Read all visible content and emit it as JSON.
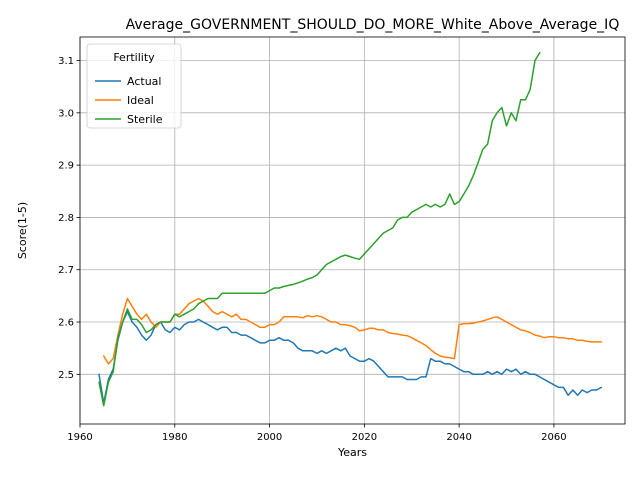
{
  "chart_data": {
    "type": "line",
    "title": "Average_GOVERNMENT_SHOULD_DO_MORE_White_Above_Average_IQ",
    "xlabel": "Years",
    "ylabel": "Score(1-5)",
    "xlim": [
      1960,
      2075
    ],
    "ylim": [
      2.405,
      3.145
    ],
    "xticks": [
      1960,
      1980,
      2000,
      2020,
      2040,
      2060
    ],
    "yticks": [
      2.5,
      2.6,
      2.7,
      2.8,
      2.9,
      3.0,
      3.1
    ],
    "grid": true,
    "legend": {
      "title": "Fertility",
      "placement": "top-left"
    },
    "series": [
      {
        "name": "Actual",
        "color": "#1f77b4",
        "x": [
          1964,
          1965,
          1966,
          1967,
          1968,
          1969,
          1970,
          1971,
          1972,
          1973,
          1974,
          1975,
          1976,
          1977,
          1978,
          1979,
          1980,
          1981,
          1982,
          1983,
          1984,
          1985,
          1986,
          1987,
          1988,
          1989,
          1990,
          1991,
          1992,
          1993,
          1994,
          1995,
          1996,
          1997,
          1998,
          1999,
          2000,
          2001,
          2002,
          2003,
          2004,
          2005,
          2006,
          2007,
          2008,
          2009,
          2010,
          2011,
          2012,
          2013,
          2014,
          2015,
          2016,
          2017,
          2018,
          2019,
          2020,
          2021,
          2022,
          2023,
          2024,
          2025,
          2026,
          2027,
          2028,
          2029,
          2030,
          2031,
          2032,
          2033,
          2034,
          2035,
          2036,
          2037,
          2038,
          2039,
          2040,
          2041,
          2042,
          2043,
          2044,
          2045,
          2046,
          2047,
          2048,
          2049,
          2050,
          2051,
          2052,
          2053,
          2054,
          2055,
          2056,
          2057,
          2058,
          2059,
          2060,
          2061,
          2062,
          2063,
          2064,
          2065,
          2066,
          2067,
          2068,
          2069,
          2070
        ],
        "values": [
          2.5,
          2.445,
          2.49,
          2.51,
          2.565,
          2.6,
          2.62,
          2.6,
          2.59,
          2.575,
          2.565,
          2.575,
          2.595,
          2.6,
          2.585,
          2.58,
          2.59,
          2.585,
          2.595,
          2.6,
          2.6,
          2.605,
          2.6,
          2.595,
          2.59,
          2.585,
          2.59,
          2.59,
          2.58,
          2.58,
          2.575,
          2.575,
          2.57,
          2.565,
          2.56,
          2.56,
          2.565,
          2.565,
          2.57,
          2.565,
          2.565,
          2.56,
          2.55,
          2.545,
          2.545,
          2.545,
          2.54,
          2.545,
          2.54,
          2.545,
          2.55,
          2.545,
          2.55,
          2.535,
          2.53,
          2.525,
          2.525,
          2.53,
          2.525,
          2.515,
          2.505,
          2.495,
          2.495,
          2.495,
          2.495,
          2.49,
          2.49,
          2.49,
          2.495,
          2.495,
          2.53,
          2.525,
          2.525,
          2.52,
          2.52,
          2.515,
          2.51,
          2.505,
          2.505,
          2.5,
          2.5,
          2.5,
          2.505,
          2.5,
          2.505,
          2.5,
          2.51,
          2.505,
          2.51,
          2.5,
          2.505,
          2.5,
          2.5,
          2.495,
          2.49,
          2.485,
          2.48,
          2.475,
          2.475,
          2.46,
          2.47,
          2.46,
          2.47,
          2.465,
          2.47,
          2.47,
          2.475
        ]
      },
      {
        "name": "Ideal",
        "color": "#ff7f0e",
        "x": [
          1965,
          1966,
          1967,
          1968,
          1969,
          1970,
          1971,
          1972,
          1973,
          1974,
          1975,
          1976,
          1977,
          1978,
          1979,
          1980,
          1981,
          1982,
          1983,
          1984,
          1985,
          1986,
          1987,
          1988,
          1989,
          1990,
          1991,
          1992,
          1993,
          1994,
          1995,
          1996,
          1997,
          1998,
          1999,
          2000,
          2001,
          2002,
          2003,
          2004,
          2005,
          2006,
          2007,
          2008,
          2009,
          2010,
          2011,
          2012,
          2013,
          2014,
          2015,
          2016,
          2017,
          2018,
          2019,
          2020,
          2021,
          2022,
          2023,
          2024,
          2025,
          2026,
          2027,
          2028,
          2029,
          2030,
          2031,
          2032,
          2033,
          2034,
          2035,
          2036,
          2037,
          2038,
          2039,
          2040,
          2041,
          2042,
          2043,
          2044,
          2045,
          2046,
          2047,
          2048,
          2049,
          2050,
          2051,
          2052,
          2053,
          2054,
          2055,
          2056,
          2057,
          2058,
          2059,
          2060,
          2061,
          2062,
          2063,
          2064,
          2065,
          2066,
          2067,
          2068,
          2069,
          2070
        ],
        "values": [
          2.535,
          2.52,
          2.53,
          2.575,
          2.615,
          2.645,
          2.63,
          2.615,
          2.605,
          2.615,
          2.6,
          2.59,
          2.6,
          2.6,
          2.6,
          2.615,
          2.615,
          2.625,
          2.635,
          2.64,
          2.645,
          2.64,
          2.63,
          2.62,
          2.615,
          2.62,
          2.615,
          2.61,
          2.615,
          2.605,
          2.605,
          2.6,
          2.595,
          2.59,
          2.59,
          2.595,
          2.595,
          2.6,
          2.61,
          2.61,
          2.61,
          2.61,
          2.608,
          2.612,
          2.61,
          2.612,
          2.61,
          2.605,
          2.6,
          2.6,
          2.595,
          2.595,
          2.593,
          2.59,
          2.583,
          2.585,
          2.588,
          2.588,
          2.585,
          2.585,
          2.58,
          2.578,
          2.577,
          2.575,
          2.574,
          2.57,
          2.565,
          2.56,
          2.555,
          2.547,
          2.54,
          2.535,
          2.533,
          2.532,
          2.53,
          2.595,
          2.597,
          2.597,
          2.598,
          2.6,
          2.602,
          2.605,
          2.608,
          2.61,
          2.605,
          2.6,
          2.595,
          2.59,
          2.585,
          2.583,
          2.58,
          2.575,
          2.573,
          2.57,
          2.572,
          2.572,
          2.57,
          2.57,
          2.568,
          2.568,
          2.565,
          2.565,
          2.563,
          2.562,
          2.562,
          2.562
        ]
      },
      {
        "name": "Sterile",
        "color": "#2ca02c",
        "x": [
          1964,
          1965,
          1966,
          1967,
          1968,
          1969,
          1970,
          1971,
          1972,
          1973,
          1974,
          1975,
          1976,
          1977,
          1978,
          1979,
          1980,
          1981,
          1982,
          1983,
          1984,
          1985,
          1986,
          1987,
          1988,
          1989,
          1990,
          1991,
          1992,
          1993,
          1994,
          1995,
          1996,
          1997,
          1998,
          1999,
          2000,
          2001,
          2002,
          2003,
          2004,
          2005,
          2006,
          2007,
          2008,
          2009,
          2010,
          2011,
          2012,
          2013,
          2014,
          2015,
          2016,
          2017,
          2018,
          2019,
          2020,
          2021,
          2022,
          2023,
          2024,
          2025,
          2026,
          2027,
          2028,
          2029,
          2030,
          2031,
          2032,
          2033,
          2034,
          2035,
          2036,
          2037,
          2038,
          2039,
          2040,
          2041,
          2042,
          2043,
          2044,
          2045,
          2046,
          2047,
          2048,
          2049,
          2050,
          2051,
          2052,
          2053,
          2054,
          2055,
          2056,
          2057
        ],
        "values": [
          2.485,
          2.44,
          2.485,
          2.505,
          2.57,
          2.6,
          2.625,
          2.605,
          2.605,
          2.595,
          2.58,
          2.585,
          2.595,
          2.6,
          2.6,
          2.6,
          2.615,
          2.61,
          2.615,
          2.62,
          2.625,
          2.635,
          2.64,
          2.645,
          2.645,
          2.645,
          2.655,
          2.655,
          2.655,
          2.655,
          2.655,
          2.655,
          2.655,
          2.655,
          2.655,
          2.655,
          2.66,
          2.665,
          2.665,
          2.668,
          2.67,
          2.672,
          2.675,
          2.678,
          2.682,
          2.685,
          2.69,
          2.7,
          2.71,
          2.715,
          2.72,
          2.725,
          2.728,
          2.725,
          2.722,
          2.72,
          2.73,
          2.74,
          2.75,
          2.76,
          2.77,
          2.775,
          2.78,
          2.795,
          2.8,
          2.8,
          2.81,
          2.815,
          2.82,
          2.825,
          2.82,
          2.825,
          2.82,
          2.825,
          2.845,
          2.825,
          2.83,
          2.845,
          2.86,
          2.88,
          2.905,
          2.93,
          2.94,
          2.985,
          3.0,
          3.01,
          2.975,
          3.0,
          2.985,
          3.025,
          3.025,
          3.045,
          3.1,
          3.115
        ]
      }
    ]
  }
}
